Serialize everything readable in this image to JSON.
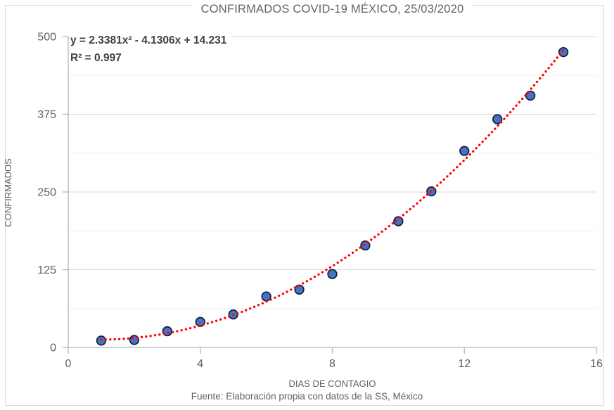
{
  "chart_data": {
    "type": "scatter",
    "title": "CONFIRMADOS COVID-19 MÉXICO, 25/03/2020",
    "xlabel": "DIAS DE CONTAGIO",
    "ylabel": "CONFIRMADOS",
    "source": "Fuente: Elaboración propia con datos de la SS, México",
    "x": [
      1,
      2,
      3,
      4,
      5,
      6,
      7,
      8,
      9,
      10,
      11,
      12,
      13,
      14,
      15
    ],
    "y": [
      11,
      12,
      26,
      41,
      53,
      82,
      93,
      118,
      164,
      203,
      251,
      316,
      367,
      405,
      475
    ],
    "xlim": [
      0,
      16
    ],
    "ylim": [
      0,
      500
    ],
    "x_ticks": [
      0,
      4,
      8,
      12,
      16
    ],
    "y_ticks": [
      0,
      125,
      250,
      375,
      500
    ],
    "y_minor_ticks": [
      62.5,
      187.5,
      312.5,
      437.5
    ],
    "grid": "horizontal-only",
    "legend": "none",
    "trendline": {
      "type": "polynomial",
      "degree": 2,
      "coefficients": {
        "a": 2.3381,
        "b": -4.1306,
        "c": 14.231
      },
      "equation_label": "y = 2.3381x² - 4.1306x + 14.231",
      "r2_label": "R² = 0.997",
      "domain": [
        1,
        15
      ],
      "style": "dotted"
    },
    "colors": {
      "background": "#ffffff",
      "border": "#d9d9d9",
      "title_text": "#5f6368",
      "axis_text": "#616161",
      "equation_text": "#404040",
      "axis_line": "#b7b7b7",
      "grid_major": "#d9d9d9",
      "grid_minor": "#f1f1f1",
      "point_fill": "#4472c4",
      "point_stroke": "#131c38",
      "trend": "#ff0000"
    }
  }
}
